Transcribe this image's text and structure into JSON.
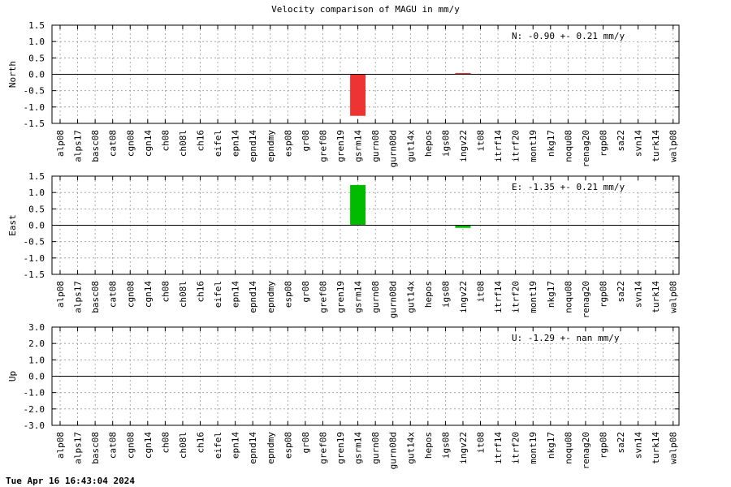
{
  "chart_data": {
    "title": "Velocity comparison of MAGU in mm/y",
    "categories": [
      "alp08",
      "alps17",
      "basc08",
      "cat08",
      "cgn08",
      "cgn14",
      "ch08",
      "ch08l",
      "ch16",
      "eifel",
      "epn14",
      "epnd14",
      "epndmy",
      "esp08",
      "gr08",
      "gref08",
      "gren19",
      "gsrm14",
      "gurn08",
      "gurn08d",
      "gut14x",
      "hepos",
      "igs08",
      "ingv22",
      "it08",
      "itrf14",
      "itrf20",
      "mont19",
      "nkg17",
      "noqu08",
      "renag20",
      "rgp08",
      "sa22",
      "svn14",
      "turk14",
      "walp08"
    ],
    "panels": [
      {
        "type": "bar",
        "ylabel": "North",
        "ylim": [
          -1.5,
          1.5
        ],
        "yticks": [
          "1.5",
          "1.0",
          "0.5",
          "0.0",
          "-0.5",
          "-1.0",
          "-1.5"
        ],
        "annotation": "N:  -0.90 +-  0.21 mm/y",
        "bars": [
          {
            "category": "gsrm14",
            "value": -1.27,
            "color": "#ee3333"
          },
          {
            "category": "ingv22",
            "value": 0.04,
            "color": "#ee3333"
          }
        ]
      },
      {
        "type": "bar",
        "ylabel": "East",
        "ylim": [
          -1.5,
          1.5
        ],
        "yticks": [
          "1.5",
          "1.0",
          "0.5",
          "0.0",
          "-0.5",
          "-1.0",
          "-1.5"
        ],
        "annotation": "E:  -1.35 +-  0.21 mm/y",
        "bars": [
          {
            "category": "gsrm14",
            "value": 1.23,
            "color": "#00bb00"
          },
          {
            "category": "ingv22",
            "value": -0.08,
            "color": "#00bb00"
          }
        ]
      },
      {
        "type": "bar",
        "ylabel": "Up",
        "ylim": [
          -3.0,
          3.0
        ],
        "yticks": [
          "3.0",
          "2.0",
          "1.0",
          "0.0",
          "-1.0",
          "-2.0",
          "-3.0"
        ],
        "annotation": "U:  -1.29 +-   nan mm/y",
        "bars": []
      }
    ],
    "grid": true
  },
  "footer": {
    "timestamp": "Tue Apr 16 16:43:04 2024"
  }
}
